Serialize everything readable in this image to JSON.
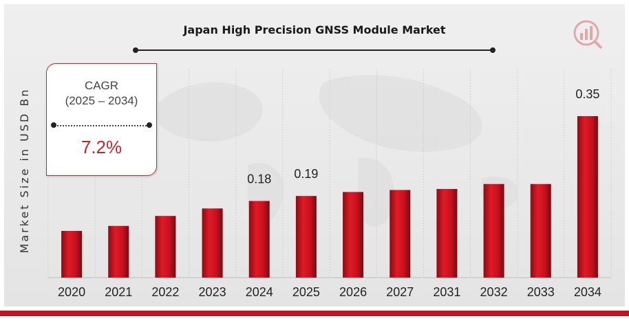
{
  "chart_data": {
    "type": "bar",
    "title": "Japan High Precision GNSS Module Market",
    "ylabel": "Market Size in USD Bn",
    "xlabel": "",
    "categories": [
      "2020",
      "2021",
      "2022",
      "2023",
      "2024",
      "2025",
      "2026",
      "2027",
      "2031",
      "2032",
      "2033",
      "2034"
    ],
    "values": [
      0.12,
      0.13,
      0.15,
      0.165,
      0.18,
      0.19,
      0.198,
      0.202,
      0.204,
      0.214,
      0.214,
      0.35
    ],
    "data_labels": [
      {
        "category": "2024",
        "text": "0.18"
      },
      {
        "category": "2025",
        "text": "0.19"
      },
      {
        "category": "2034",
        "text": "0.35"
      }
    ],
    "grid": true,
    "legend": "none",
    "colors": {
      "bar": "#c8101e",
      "bar_dark": "#7a0a10",
      "accent": "#c8252b"
    }
  },
  "callout": {
    "label": "CAGR",
    "period": "(2025 – 2034)",
    "value": "7.2%"
  }
}
